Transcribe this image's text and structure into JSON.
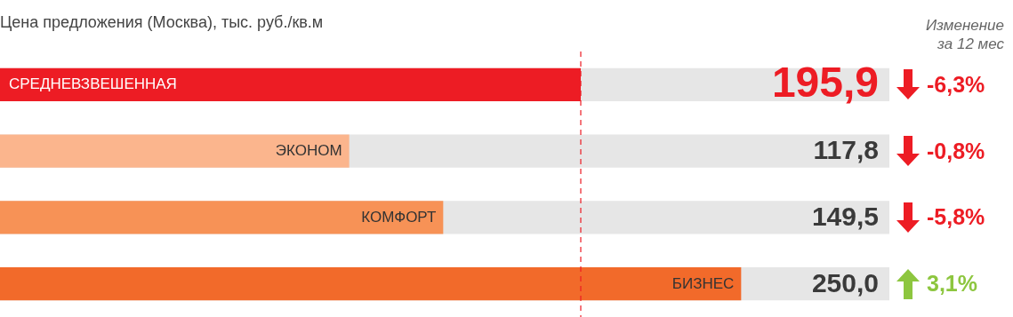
{
  "chart_data": {
    "type": "bar",
    "orientation": "horizontal",
    "title": "Цена предложения (Москва), тыс. руб./кв.м",
    "categories": [
      "СРЕДНЕВЗВЕШЕННАЯ",
      "ЭКОНОМ",
      "КОМФОРТ",
      "БИЗНЕС"
    ],
    "values": [
      195.9,
      117.8,
      149.5,
      250.0
    ],
    "colors": [
      "#ed1c24",
      "#fbb58d",
      "#f79256",
      "#f26a2a"
    ],
    "value_labels": [
      "195,9",
      "117,8",
      "149,5",
      "250,0"
    ],
    "xlim": [
      0,
      300
    ],
    "ref_lines": [
      {
        "axis": "x",
        "value": 195.9,
        "color": "#ed1c24",
        "line_style": "dashed"
      }
    ],
    "annotations": [
      "Изменение за 12 мес",
      "-6,3%",
      "-0,8%",
      "-5,8%",
      "3,1%"
    ]
  }
}
